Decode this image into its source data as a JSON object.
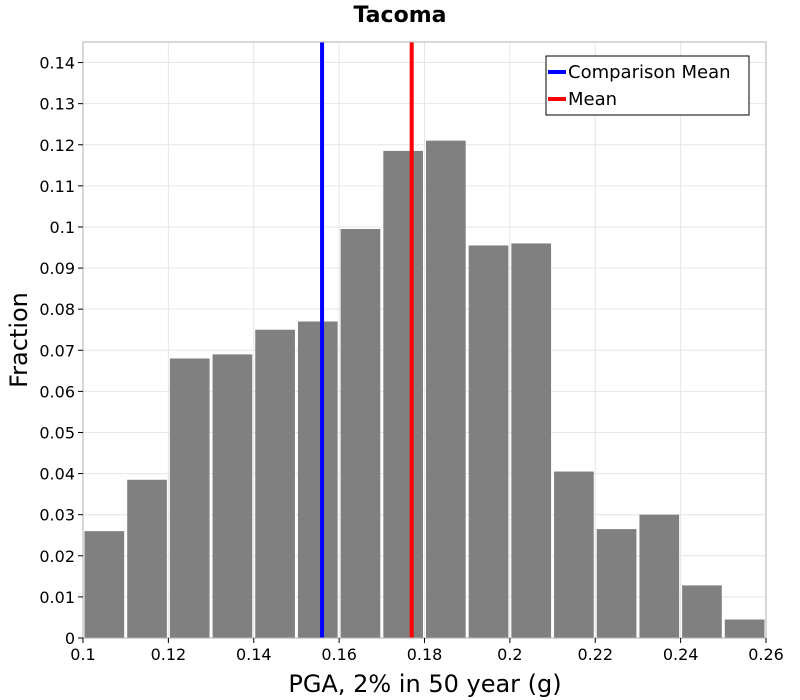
{
  "chart_data": {
    "type": "bar",
    "title": "Tacoma",
    "xlabel": "PGA, 2% in 50 year (g)",
    "ylabel": "Fraction",
    "xlim": [
      0.1,
      0.26
    ],
    "ylim": [
      0,
      0.145
    ],
    "xticks": [
      "0.1",
      "0.12",
      "0.14",
      "0.16",
      "0.18",
      "0.2",
      "0.22",
      "0.24",
      "0.26"
    ],
    "yticks": [
      "0",
      "0.01",
      "0.02",
      "0.03",
      "0.04",
      "0.05",
      "0.06",
      "0.07",
      "0.08",
      "0.09",
      "0.1",
      "0.11",
      "0.12",
      "0.13",
      "0.14"
    ],
    "bin_width": 0.01,
    "bins": [
      0.1,
      0.11,
      0.12,
      0.13,
      0.14,
      0.15,
      0.16,
      0.17,
      0.18,
      0.19,
      0.2,
      0.21,
      0.22,
      0.23,
      0.24,
      0.25
    ],
    "values": [
      0.026,
      0.0385,
      0.068,
      0.069,
      0.075,
      0.077,
      0.0995,
      0.1185,
      0.121,
      0.0955,
      0.096,
      0.0405,
      0.0265,
      0.03,
      0.0128,
      0.0045
    ],
    "bar_color": "#808080",
    "grid": true,
    "vlines": [
      {
        "name": "Comparison Mean",
        "x": 0.156,
        "color": "#0000ff"
      },
      {
        "name": "Mean",
        "x": 0.177,
        "color": "#ff0000"
      }
    ],
    "legend": {
      "position": "top-right",
      "entries": [
        {
          "label": "Comparison Mean",
          "color": "#0000ff"
        },
        {
          "label": "Mean",
          "color": "#ff0000"
        }
      ]
    }
  }
}
